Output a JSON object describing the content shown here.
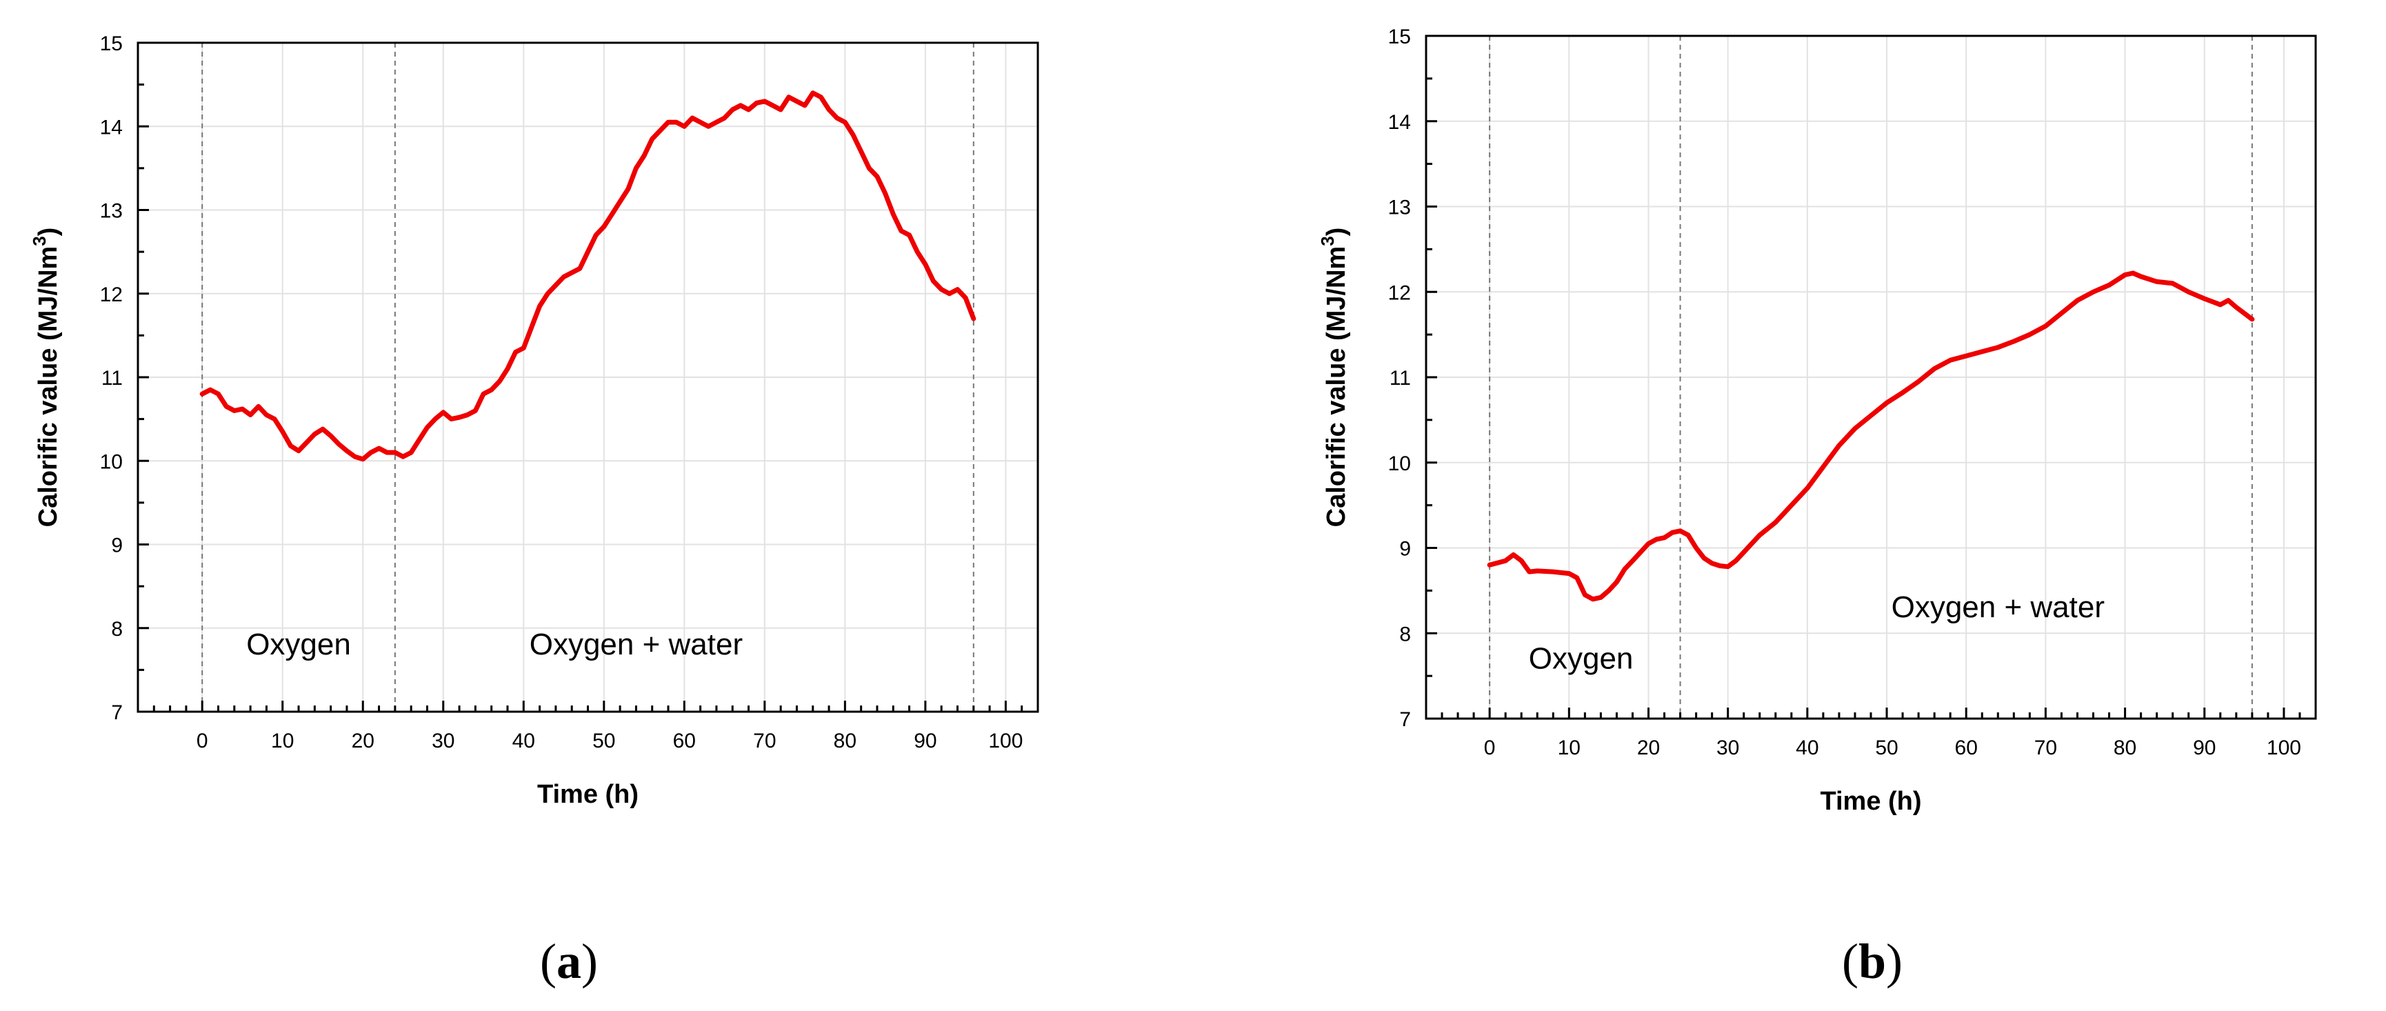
{
  "chart_data": [
    {
      "panel": "(a)",
      "panel_letter": "a",
      "type": "line",
      "xlabel": "Time (h)",
      "ylabel_main": "Calorific value (MJ/Nm",
      "ylabel_sup": "3",
      "ylabel_end": ")",
      "xlim": [
        -8,
        104
      ],
      "ylim": [
        7,
        15
      ],
      "xticks": [
        0,
        10,
        20,
        30,
        40,
        50,
        60,
        70,
        80,
        90,
        100
      ],
      "yticks": [
        7,
        8,
        9,
        10,
        11,
        12,
        13,
        14,
        15
      ],
      "grid": true,
      "color": "#ee0000",
      "vlines": [
        0,
        24,
        96
      ],
      "annotations": [
        {
          "text": "Oxygen",
          "x": 12,
          "y": 7.8
        },
        {
          "text": "Oxygen + water",
          "x": 54,
          "y": 7.8
        }
      ],
      "series": [
        {
          "x": [
            0,
            1,
            2,
            3,
            4,
            5,
            6,
            7,
            8,
            9,
            10,
            11,
            12,
            13,
            14,
            15,
            16,
            17,
            18,
            19,
            20,
            21,
            22,
            23,
            24,
            25,
            26,
            27,
            28,
            29,
            30,
            31,
            32,
            33,
            34,
            35,
            36,
            37,
            38,
            39,
            40,
            41,
            42,
            43,
            44,
            45,
            46,
            47,
            48,
            49,
            50,
            51,
            52,
            53,
            54,
            55,
            56,
            57,
            58,
            59,
            60,
            61,
            62,
            63,
            64,
            65,
            66,
            67,
            68,
            69,
            70,
            71,
            72,
            73,
            74,
            75,
            76,
            77,
            78,
            79,
            80,
            81,
            82,
            83,
            84,
            85,
            86,
            87,
            88,
            89,
            90,
            91,
            92,
            93,
            94,
            95,
            96
          ],
          "y": [
            10.8,
            10.85,
            10.8,
            10.65,
            10.6,
            10.62,
            10.55,
            10.65,
            10.55,
            10.5,
            10.35,
            10.18,
            10.12,
            10.22,
            10.32,
            10.38,
            10.3,
            10.2,
            10.12,
            10.05,
            10.02,
            10.1,
            10.15,
            10.1,
            10.1,
            10.05,
            10.1,
            10.25,
            10.4,
            10.5,
            10.58,
            10.5,
            10.52,
            10.55,
            10.6,
            10.8,
            10.85,
            10.95,
            11.1,
            11.3,
            11.35,
            11.6,
            11.85,
            12.0,
            12.1,
            12.2,
            12.25,
            12.3,
            12.5,
            12.7,
            12.8,
            12.95,
            13.1,
            13.25,
            13.5,
            13.65,
            13.85,
            13.95,
            14.05,
            14.05,
            14.0,
            14.1,
            14.05,
            14.0,
            14.05,
            14.1,
            14.2,
            14.25,
            14.2,
            14.28,
            14.3,
            14.25,
            14.2,
            14.35,
            14.3,
            14.25,
            14.4,
            14.35,
            14.2,
            14.1,
            14.05,
            13.9,
            13.7,
            13.5,
            13.4,
            13.2,
            12.95,
            12.75,
            12.7,
            12.5,
            12.35,
            12.15,
            12.05,
            12.0,
            12.05,
            11.95,
            11.7
          ]
        }
      ]
    },
    {
      "panel": "(b)",
      "panel_letter": "b",
      "type": "line",
      "xlabel": "Time (h)",
      "ylabel_main": "Calorific value (MJ/Nm",
      "ylabel_sup": "3",
      "ylabel_end": ")",
      "xlim": [
        -8,
        104
      ],
      "ylim": [
        7,
        15
      ],
      "xticks": [
        0,
        10,
        20,
        30,
        40,
        50,
        60,
        70,
        80,
        90,
        100
      ],
      "yticks": [
        7,
        8,
        9,
        10,
        11,
        12,
        13,
        14,
        15
      ],
      "grid": true,
      "color": "#ee0000",
      "vlines": [
        0,
        24,
        96
      ],
      "annotations": [
        {
          "text": "Oxygen",
          "x": 11.5,
          "y": 7.7
        },
        {
          "text": "Oxygen + water",
          "x": 64,
          "y": 8.3
        }
      ],
      "series": [
        {
          "x": [
            0,
            2,
            3,
            4,
            5,
            6,
            8,
            10,
            11,
            12,
            13,
            14,
            15,
            16,
            17,
            18,
            19,
            20,
            21,
            22,
            23,
            24,
            25,
            26,
            27,
            28,
            29,
            30,
            31,
            32,
            33,
            34,
            36,
            38,
            40,
            42,
            44,
            46,
            48,
            50,
            52,
            54,
            56,
            58,
            60,
            62,
            64,
            66,
            68,
            70,
            72,
            74,
            76,
            78,
            80,
            81,
            82,
            84,
            86,
            88,
            90,
            92,
            93,
            94,
            96
          ],
          "y": [
            8.8,
            8.85,
            8.92,
            8.85,
            8.72,
            8.73,
            8.72,
            8.7,
            8.65,
            8.45,
            8.4,
            8.42,
            8.5,
            8.6,
            8.75,
            8.85,
            8.95,
            9.05,
            9.1,
            9.12,
            9.18,
            9.2,
            9.15,
            9.0,
            8.88,
            8.82,
            8.79,
            8.78,
            8.85,
            8.95,
            9.05,
            9.15,
            9.3,
            9.5,
            9.7,
            9.95,
            10.2,
            10.4,
            10.55,
            10.7,
            10.82,
            10.95,
            11.1,
            11.2,
            11.25,
            11.3,
            11.35,
            11.42,
            11.5,
            11.6,
            11.75,
            11.9,
            12.0,
            12.08,
            12.2,
            12.22,
            12.18,
            12.12,
            12.1,
            12.0,
            11.92,
            11.85,
            11.9,
            11.82,
            11.68
          ]
        }
      ]
    }
  ]
}
